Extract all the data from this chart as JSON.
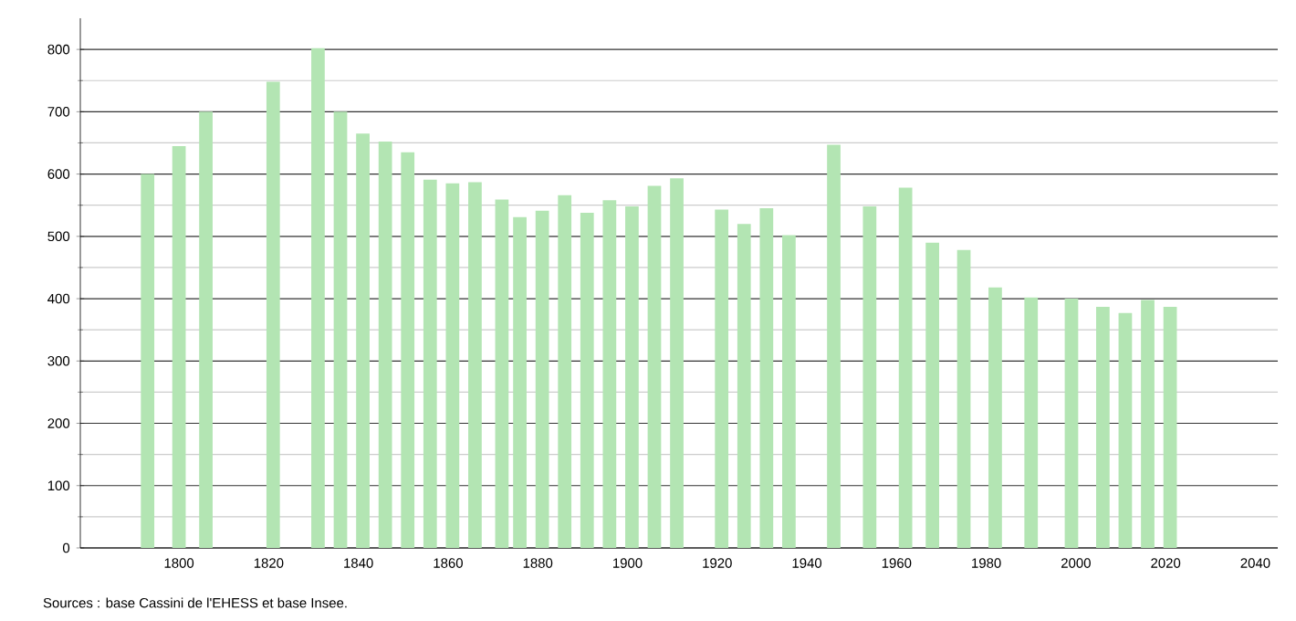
{
  "chart_data": {
    "type": "bar",
    "x": [
      1793,
      1800,
      1806,
      1821,
      1831,
      1836,
      1841,
      1846,
      1851,
      1856,
      1861,
      1866,
      1872,
      1876,
      1881,
      1886,
      1891,
      1896,
      1901,
      1906,
      1911,
      1921,
      1926,
      1931,
      1936,
      1946,
      1954,
      1962,
      1968,
      1975,
      1982,
      1990,
      1999,
      2006,
      2011,
      2016,
      2021
    ],
    "values": [
      600,
      645,
      700,
      748,
      802,
      700,
      665,
      652,
      635,
      591,
      585,
      587,
      559,
      531,
      541,
      566,
      538,
      558,
      548,
      581,
      593,
      543,
      520,
      545,
      502,
      647,
      548,
      578,
      490,
      478,
      418,
      402,
      400,
      387,
      377,
      398,
      387
    ],
    "color": "#b3e5b3",
    "xlim": [
      1778,
      2045
    ],
    "ylim": [
      0,
      850
    ],
    "xticks": [
      1800,
      1820,
      1840,
      1860,
      1880,
      1900,
      1920,
      1940,
      1960,
      1980,
      2000,
      2020,
      2040
    ],
    "yticks": [
      0,
      100,
      200,
      300,
      400,
      500,
      600,
      700,
      800
    ],
    "grid": "y",
    "annotations": [
      "Sources : base Cassini de l'EHESS et base Insee."
    ]
  }
}
